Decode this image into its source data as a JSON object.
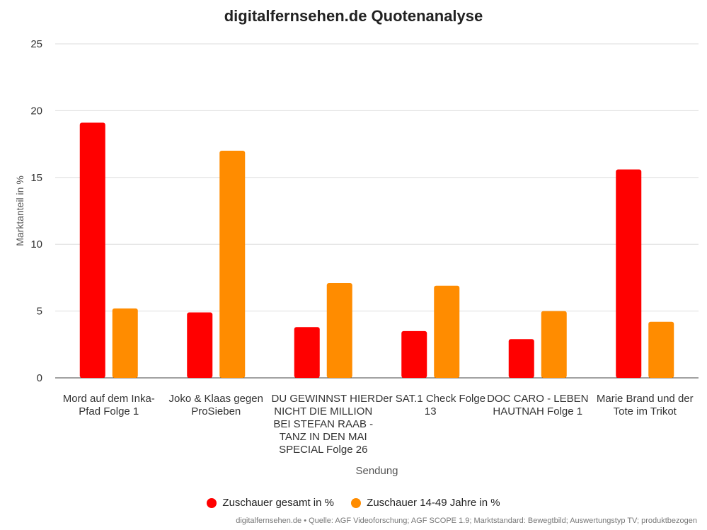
{
  "chart_data": {
    "type": "bar",
    "title": "digitalfernsehen.de Quotenanalyse",
    "xlabel": "Sendung",
    "ylabel": "Marktanteil in %",
    "ylim": [
      0,
      25
    ],
    "yticks": [
      0,
      5,
      10,
      15,
      20,
      25
    ],
    "grid": true,
    "legend_position": "bottom",
    "categories": [
      [
        "Mord auf dem Inka-",
        "Pfad Folge 1"
      ],
      [
        "Joko & Klaas gegen",
        "ProSieben"
      ],
      [
        "DU GEWINNST HIER",
        "NICHT DIE MILLION",
        "BEI STEFAN RAAB -",
        "TANZ IN DEN MAI",
        "SPECIAL Folge 26"
      ],
      [
        "Der SAT.1 Check Folge",
        "13"
      ],
      [
        "DOC CARO - LEBEN",
        "HAUTNAH Folge 1"
      ],
      [
        "Marie Brand und der",
        "Tote im Trikot"
      ]
    ],
    "series": [
      {
        "name": "Zuschauer gesamt in %",
        "color": "#ff0000",
        "values": [
          19.1,
          4.9,
          3.8,
          3.5,
          2.9,
          15.6
        ]
      },
      {
        "name": "Zuschauer 14-49 Jahre in %",
        "color": "#ff8c00",
        "values": [
          5.2,
          17.0,
          7.1,
          6.9,
          5.0,
          4.2
        ]
      }
    ]
  },
  "footer": {
    "source": "digitalfernsehen.de • Quelle: AGF Videoforschung; AGF SCOPE 1.9; Marktstandard: Bewegtbild; Auswertungstyp TV; produktbezogen"
  }
}
